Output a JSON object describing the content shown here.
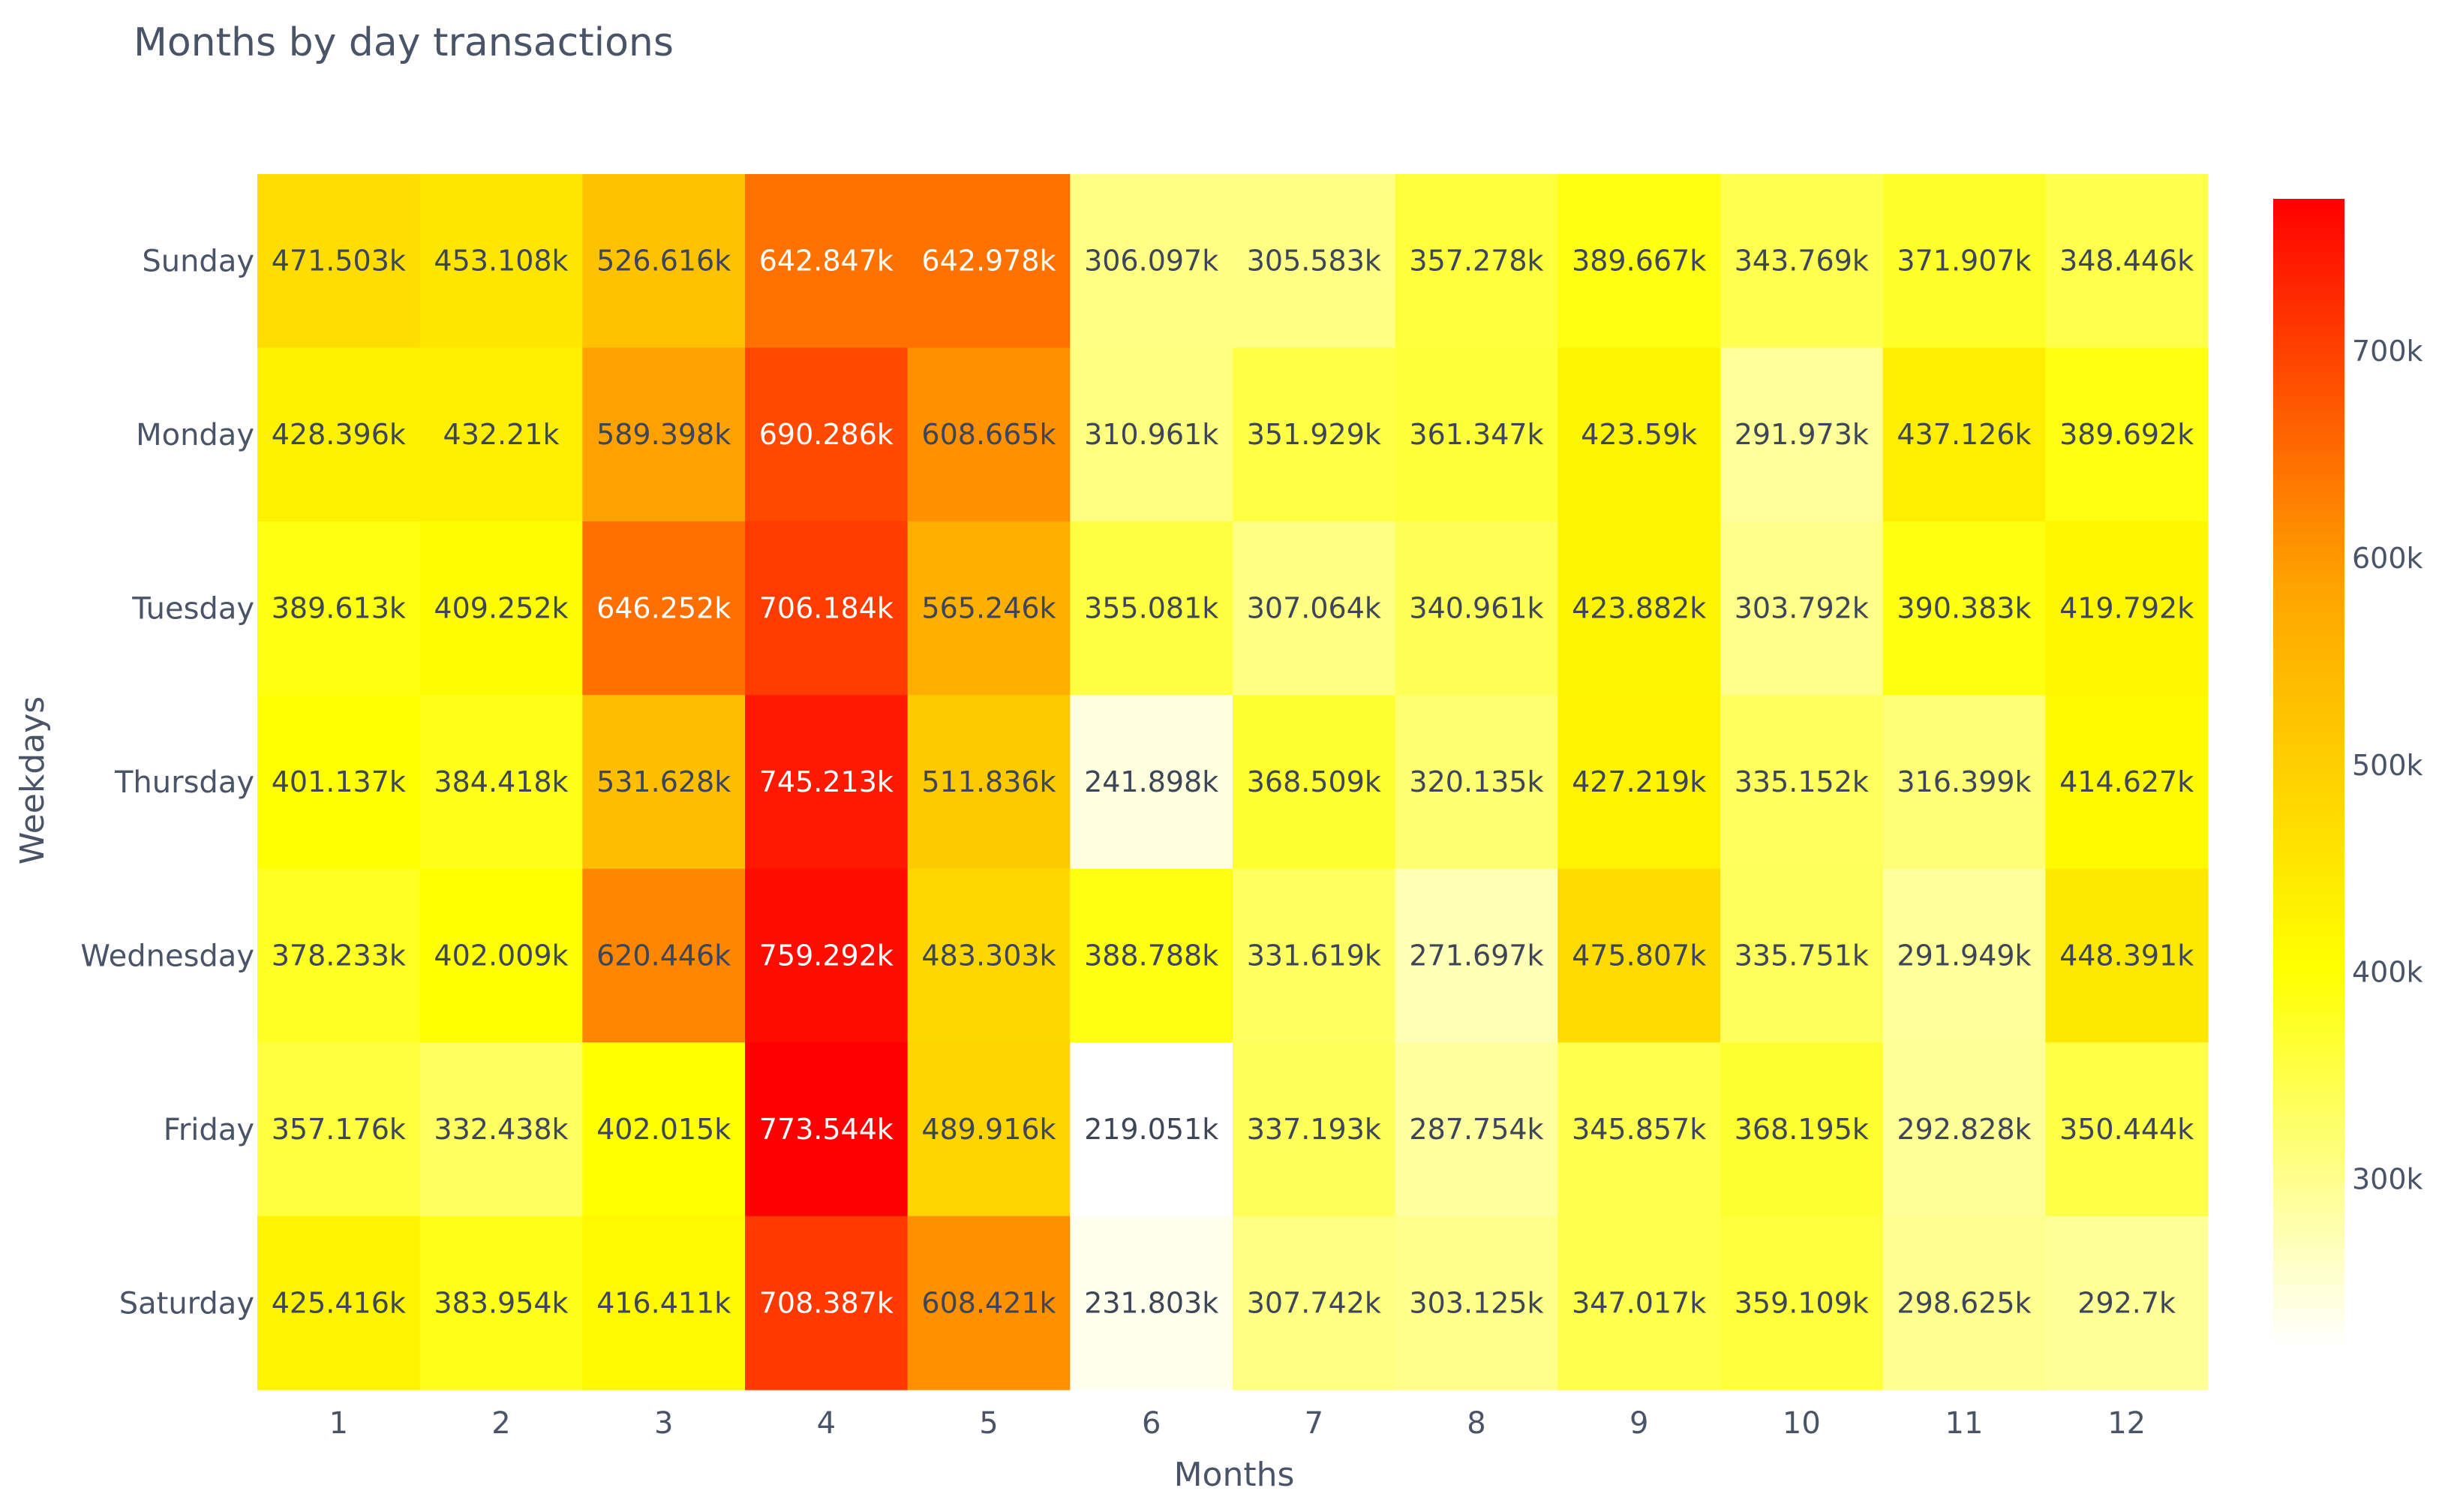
{
  "chart_data": {
    "type": "heatmap",
    "title": "Months by day transactions",
    "xlabel": "Months",
    "ylabel": "Weekdays",
    "x": [
      "1",
      "2",
      "3",
      "4",
      "5",
      "6",
      "7",
      "8",
      "9",
      "10",
      "11",
      "12"
    ],
    "y": [
      "Sunday",
      "Monday",
      "Tuesday",
      "Thursday",
      "Wednesday",
      "Friday",
      "Saturday"
    ],
    "z": [
      [
        471503,
        453108,
        526616,
        642847,
        642978,
        306097,
        305583,
        357278,
        389667,
        343769,
        371907,
        348446
      ],
      [
        428396,
        432210,
        589398,
        690286,
        608665,
        310961,
        351929,
        361347,
        423590,
        291973,
        437126,
        389692
      ],
      [
        389613,
        409252,
        646252,
        706184,
        565246,
        355081,
        307064,
        340961,
        423882,
        303792,
        390383,
        419792
      ],
      [
        401137,
        384418,
        531628,
        745213,
        511836,
        241898,
        368509,
        320135,
        427219,
        335152,
        316399,
        414627
      ],
      [
        378233,
        402009,
        620446,
        759292,
        483303,
        388788,
        331619,
        271697,
        475807,
        335751,
        291949,
        448391
      ],
      [
        357176,
        332438,
        402015,
        773544,
        489916,
        219051,
        337193,
        287754,
        345857,
        368195,
        292828,
        350444
      ],
      [
        425416,
        383954,
        416411,
        708387,
        608421,
        231803,
        307742,
        303125,
        347017,
        359109,
        298625,
        292700
      ]
    ],
    "text": [
      [
        "471.503k",
        "453.108k",
        "526.616k",
        "642.847k",
        "642.978k",
        "306.097k",
        "305.583k",
        "357.278k",
        "389.667k",
        "343.769k",
        "371.907k",
        "348.446k"
      ],
      [
        "428.396k",
        "432.21k",
        "589.398k",
        "690.286k",
        "608.665k",
        "310.961k",
        "351.929k",
        "361.347k",
        "423.59k",
        "291.973k",
        "437.126k",
        "389.692k"
      ],
      [
        "389.613k",
        "409.252k",
        "646.252k",
        "706.184k",
        "565.246k",
        "355.081k",
        "307.064k",
        "340.961k",
        "423.882k",
        "303.792k",
        "390.383k",
        "419.792k"
      ],
      [
        "401.137k",
        "384.418k",
        "531.628k",
        "745.213k",
        "511.836k",
        "241.898k",
        "368.509k",
        "320.135k",
        "427.219k",
        "335.152k",
        "316.399k",
        "414.627k"
      ],
      [
        "378.233k",
        "402.009k",
        "620.446k",
        "759.292k",
        "483.303k",
        "388.788k",
        "331.619k",
        "271.697k",
        "475.807k",
        "335.751k",
        "291.949k",
        "448.391k"
      ],
      [
        "357.176k",
        "332.438k",
        "402.015k",
        "773.544k",
        "489.916k",
        "219.051k",
        "337.193k",
        "287.754k",
        "345.857k",
        "368.195k",
        "292.828k",
        "350.444k"
      ],
      [
        "425.416k",
        "383.954k",
        "416.411k",
        "708.387k",
        "608.421k",
        "231.803k",
        "307.742k",
        "303.125k",
        "347.017k",
        "359.109k",
        "298.625k",
        "292.7k"
      ]
    ],
    "colorscale": "YlOrRd (white-yellow-orange-red)",
    "zmin": 219051,
    "zmax": 773544,
    "colorbar": {
      "tickvals": [
        300000,
        400000,
        500000,
        600000,
        700000
      ],
      "ticktext": [
        "300k",
        "400k",
        "500k",
        "600k",
        "700k"
      ]
    },
    "colors": {
      "low": "#ffffff",
      "mid_low": "#ffff00",
      "mid_high": "#ffa500",
      "high": "#ff0000",
      "text_dark": "#3d4658",
      "text_light": "#ffffff"
    }
  }
}
